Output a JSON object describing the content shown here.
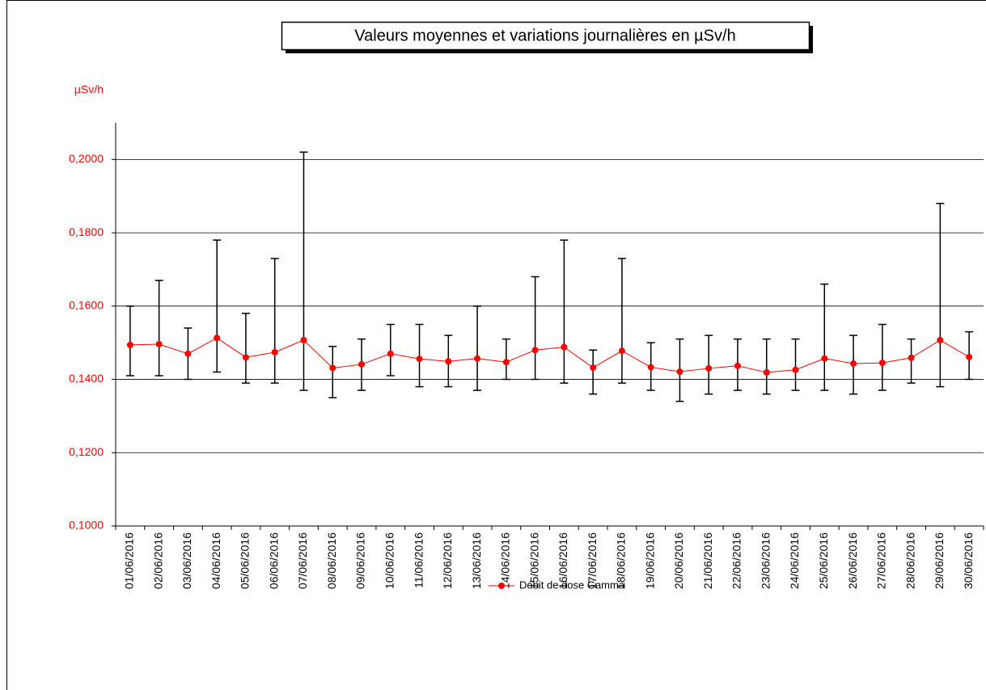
{
  "chart_data": {
    "type": "line",
    "title": "Valeurs moyennes et variations journalières en µSv/h",
    "y_label": "µSv/h",
    "categories": [
      "01/06/2016",
      "02/06/2016",
      "03/06/2016",
      "04/06/2016",
      "05/06/2016",
      "06/06/2016",
      "07/06/2016",
      "08/06/2016",
      "09/06/2016",
      "10/06/2016",
      "11/06/2016",
      "12/06/2016",
      "13/06/2016",
      "14/06/2016",
      "15/06/2016",
      "16/06/2016",
      "17/06/2016",
      "18/06/2016",
      "19/06/2016",
      "20/06/2016",
      "21/06/2016",
      "22/06/2016",
      "23/06/2016",
      "24/06/2016",
      "25/06/2016",
      "26/06/2016",
      "27/06/2016",
      "28/06/2016",
      "29/06/2016",
      "30/06/2016"
    ],
    "series": [
      {
        "name": "Débit de dose Gamma",
        "color": "#ff0000",
        "values": [
          0.1494,
          0.1496,
          0.147,
          0.1513,
          0.146,
          0.1474,
          0.1507,
          0.1431,
          0.1441,
          0.147,
          0.1456,
          0.1449,
          0.1457,
          0.1447,
          0.148,
          0.1488,
          0.1432,
          0.1478,
          0.1433,
          0.1421,
          0.143,
          0.1437,
          0.1419,
          0.1426,
          0.1457,
          0.1443,
          0.1445,
          0.1459,
          0.1507,
          0.1461
        ],
        "low": [
          0.141,
          0.141,
          0.14,
          0.142,
          0.139,
          0.139,
          0.137,
          0.135,
          0.137,
          0.141,
          0.138,
          0.138,
          0.137,
          0.14,
          0.14,
          0.139,
          0.136,
          0.139,
          0.137,
          0.134,
          0.136,
          0.137,
          0.136,
          0.137,
          0.137,
          0.136,
          0.137,
          0.139,
          0.138,
          0.14
        ],
        "high": [
          0.16,
          0.167,
          0.154,
          0.178,
          0.158,
          0.173,
          0.202,
          0.149,
          0.151,
          0.155,
          0.155,
          0.152,
          0.16,
          0.151,
          0.168,
          0.178,
          0.148,
          0.173,
          0.15,
          0.151,
          0.152,
          0.151,
          0.151,
          0.151,
          0.166,
          0.152,
          0.155,
          0.151,
          0.188,
          0.153
        ]
      }
    ],
    "ylim": [
      0.1,
      0.21
    ],
    "yticks": [
      {
        "value": 0.1,
        "label": "0,1000"
      },
      {
        "value": 0.12,
        "label": "0,1200"
      },
      {
        "value": 0.14,
        "label": "0,1400"
      },
      {
        "value": 0.16,
        "label": "0,1600"
      },
      {
        "value": 0.18,
        "label": "0,1800"
      },
      {
        "value": 0.2,
        "label": "0,2000"
      }
    ],
    "grid": true,
    "legend": "bottom"
  }
}
